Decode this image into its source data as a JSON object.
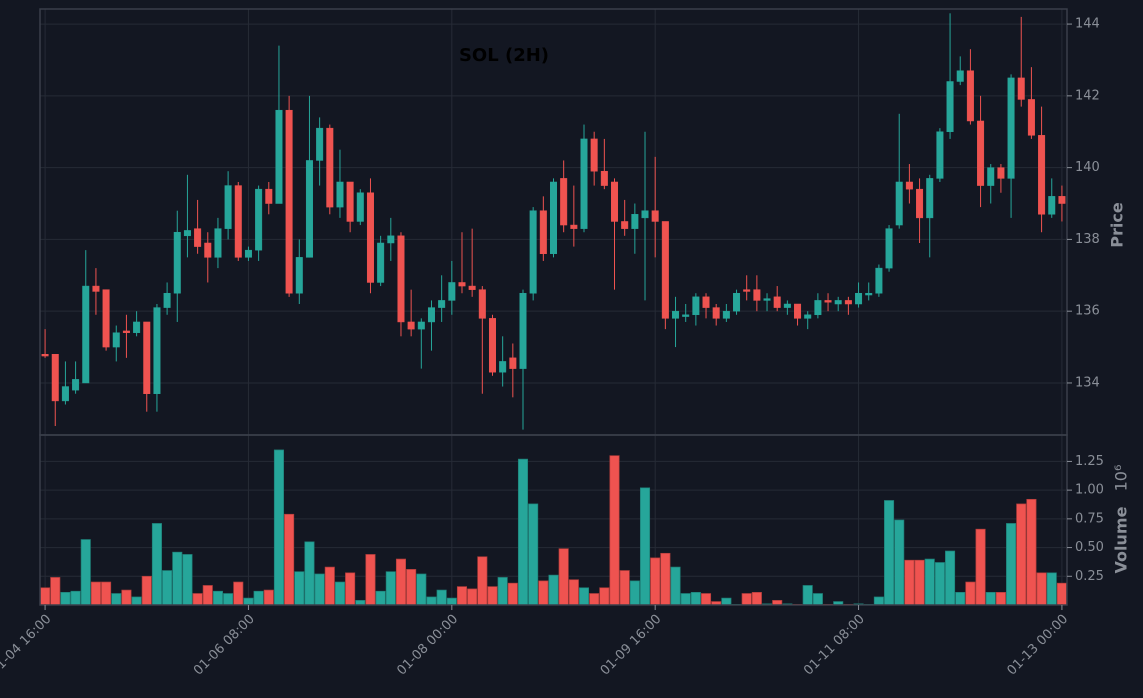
{
  "chart_data": {
    "type": "candlestick",
    "title": "SOL (2H)",
    "y_label": "Price",
    "volume_label": "Volume",
    "volume_scale_label": "10⁶",
    "up_color": "#26a69a",
    "down_color": "#ef5350",
    "grid": true,
    "open": [
      134.8,
      134.8,
      133.5,
      133.8,
      134.0,
      136.7,
      136.6,
      135.0,
      135.45,
      135.4,
      135.7,
      133.7,
      136.1,
      136.5,
      138.1,
      138.3,
      137.9,
      137.5,
      138.3,
      139.5,
      137.5,
      137.7,
      139.4,
      139.0,
      141.6,
      136.5,
      137.5,
      140.2,
      141.1,
      138.9,
      139.6,
      138.5,
      139.3,
      136.8,
      137.9,
      138.1,
      135.7,
      135.5,
      135.7,
      136.1,
      136.3,
      136.8,
      136.7,
      136.6,
      135.8,
      134.3,
      134.7,
      134.4,
      136.5,
      138.8,
      137.6,
      139.7,
      138.4,
      138.3,
      140.8,
      139.9,
      139.6,
      138.5,
      138.3,
      138.6,
      138.8,
      138.5,
      135.8,
      135.85,
      135.9,
      136.4,
      136.1,
      135.8,
      136.0,
      136.6,
      136.6,
      136.3,
      136.4,
      136.1,
      136.2,
      135.8,
      135.9,
      136.3,
      136.2,
      136.3,
      136.2,
      136.45,
      136.5,
      137.2,
      138.4,
      139.6,
      139.4,
      138.6,
      139.7,
      141.0,
      142.4,
      142.7,
      141.3,
      139.5,
      140.0,
      139.7,
      142.5,
      141.9,
      140.9,
      138.7,
      139.2
    ],
    "high": [
      135.5,
      134.8,
      134.6,
      134.6,
      137.7,
      137.2,
      136.6,
      135.6,
      135.9,
      136.0,
      135.7,
      136.2,
      136.8,
      138.8,
      139.8,
      139.1,
      138.2,
      138.6,
      139.9,
      139.6,
      137.8,
      139.5,
      139.6,
      143.4,
      142.0,
      138.0,
      142.0,
      141.4,
      141.2,
      140.5,
      139.6,
      139.4,
      139.7,
      138.1,
      138.6,
      138.2,
      136.6,
      135.8,
      136.3,
      137.0,
      137.4,
      138.2,
      138.3,
      136.7,
      135.9,
      135.3,
      135.1,
      136.6,
      138.9,
      139.2,
      139.7,
      140.2,
      139.5,
      141.2,
      141.0,
      140.8,
      139.7,
      139.1,
      139.0,
      141.0,
      140.3,
      138.5,
      136.4,
      136.2,
      136.5,
      136.5,
      136.2,
      136.2,
      136.6,
      137.0,
      137.0,
      136.5,
      136.7,
      136.3,
      136.2,
      136.0,
      136.5,
      136.5,
      136.4,
      136.4,
      136.8,
      136.8,
      137.3,
      138.4,
      141.5,
      140.1,
      139.7,
      139.8,
      141.1,
      144.3,
      143.1,
      143.3,
      142.0,
      140.1,
      140.1,
      142.6,
      144.2,
      142.8,
      141.7,
      139.7,
      139.5
    ],
    "low": [
      134.7,
      132.8,
      133.4,
      133.7,
      134.0,
      135.9,
      134.9,
      134.6,
      134.7,
      135.3,
      133.2,
      133.2,
      135.9,
      135.7,
      137.5,
      137.6,
      136.8,
      137.2,
      138.0,
      137.4,
      137.4,
      137.4,
      138.7,
      139.0,
      136.4,
      136.2,
      137.5,
      139.5,
      138.7,
      138.6,
      138.2,
      138.4,
      136.5,
      136.7,
      137.4,
      135.3,
      135.3,
      134.4,
      134.9,
      135.7,
      135.9,
      136.5,
      136.4,
      133.7,
      134.2,
      133.9,
      133.6,
      132.7,
      136.3,
      137.4,
      137.5,
      138.2,
      137.8,
      138.2,
      139.5,
      139.4,
      136.6,
      138.1,
      137.6,
      136.3,
      137.5,
      135.5,
      135.0,
      135.7,
      135.6,
      135.8,
      135.6,
      135.7,
      135.9,
      136.3,
      136.0,
      136.0,
      136.0,
      135.9,
      135.6,
      135.5,
      135.8,
      136.0,
      136.0,
      135.9,
      136.1,
      136.3,
      136.4,
      137.1,
      138.3,
      139.0,
      137.9,
      137.5,
      139.6,
      140.8,
      142.3,
      141.2,
      138.9,
      139.0,
      139.3,
      138.6,
      141.7,
      140.8,
      138.2,
      138.6,
      138.5
    ],
    "close": [
      134.75,
      133.5,
      133.9,
      134.1,
      136.7,
      136.55,
      135.0,
      135.4,
      135.4,
      135.7,
      133.7,
      136.1,
      136.5,
      138.2,
      138.25,
      137.8,
      137.5,
      138.3,
      139.5,
      137.5,
      137.7,
      139.4,
      139.0,
      141.6,
      136.5,
      137.5,
      140.2,
      141.1,
      138.9,
      139.6,
      138.5,
      139.3,
      136.8,
      137.9,
      138.1,
      135.7,
      135.5,
      135.7,
      136.1,
      136.3,
      136.8,
      136.7,
      136.6,
      135.8,
      134.3,
      134.6,
      134.4,
      136.5,
      138.8,
      137.6,
      139.6,
      138.4,
      138.3,
      140.8,
      139.9,
      139.5,
      138.5,
      138.3,
      138.7,
      138.8,
      138.5,
      135.8,
      136.0,
      135.9,
      136.4,
      136.1,
      135.8,
      136.0,
      136.5,
      136.55,
      136.3,
      136.35,
      136.1,
      136.2,
      135.8,
      135.9,
      136.3,
      136.25,
      136.3,
      136.2,
      136.5,
      136.5,
      137.2,
      138.3,
      139.6,
      139.4,
      138.6,
      139.7,
      141.0,
      142.4,
      142.7,
      141.3,
      139.5,
      140.0,
      139.7,
      142.5,
      141.9,
      140.9,
      138.7,
      139.2,
      139.0
    ],
    "volume": [
      0.15,
      0.24,
      0.11,
      0.12,
      0.57,
      0.2,
      0.2,
      0.1,
      0.13,
      0.07,
      0.25,
      0.71,
      0.3,
      0.46,
      0.44,
      0.1,
      0.17,
      0.12,
      0.1,
      0.2,
      0.06,
      0.12,
      0.13,
      1.35,
      0.79,
      0.29,
      0.55,
      0.27,
      0.33,
      0.2,
      0.28,
      0.04,
      0.44,
      0.12,
      0.29,
      0.4,
      0.31,
      0.27,
      0.07,
      0.13,
      0.06,
      0.16,
      0.14,
      0.42,
      0.16,
      0.24,
      0.19,
      1.27,
      0.88,
      0.21,
      0.26,
      0.49,
      0.22,
      0.15,
      0.1,
      0.15,
      1.3,
      0.3,
      0.21,
      1.02,
      0.41,
      0.45,
      0.33,
      0.1,
      0.11,
      0.1,
      0.03,
      0.06,
      0.005,
      0.1,
      0.11,
      0.01,
      0.04,
      0.01,
      0.005,
      0.17,
      0.1,
      0.005,
      0.03,
      0.005,
      0.01,
      0.005,
      0.07,
      0.91,
      0.74,
      0.39,
      0.39,
      0.4,
      0.37,
      0.47,
      0.11,
      0.2,
      0.66,
      0.11,
      0.11,
      0.71,
      0.88,
      0.92,
      0.28,
      0.28,
      0.19
    ],
    "xlim": [
      -0.5,
      100.5
    ],
    "xticks": [
      {
        "value": 0,
        "label": "01-04 16:00"
      },
      {
        "value": 20,
        "label": "01-06 08:00"
      },
      {
        "value": 40,
        "label": "01-08 00:00"
      },
      {
        "value": 60,
        "label": "01-09 16:00"
      },
      {
        "value": 80,
        "label": "01-11 08:00"
      },
      {
        "value": 100,
        "label": "01-13 00:00"
      }
    ],
    "ylim": [
      132.55,
      144.42
    ],
    "yticks": [
      134,
      136,
      138,
      140,
      142,
      144
    ],
    "volume_ylim": [
      0,
      1.48
    ],
    "volume_yticks": [
      0.25,
      {
        "value": 0.5,
        "label": "0.50"
      },
      0.75,
      {
        "value": 1,
        "label": "1.00"
      },
      1.25
    ]
  }
}
